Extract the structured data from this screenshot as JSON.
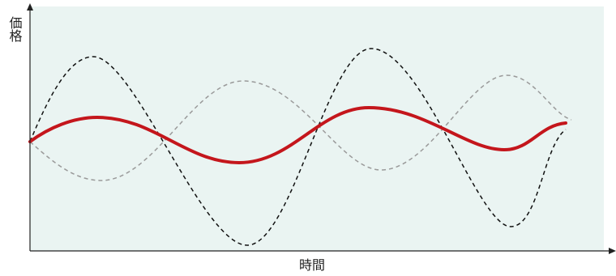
{
  "axes": {
    "y_label": "価格",
    "x_label": "時間"
  }
}
